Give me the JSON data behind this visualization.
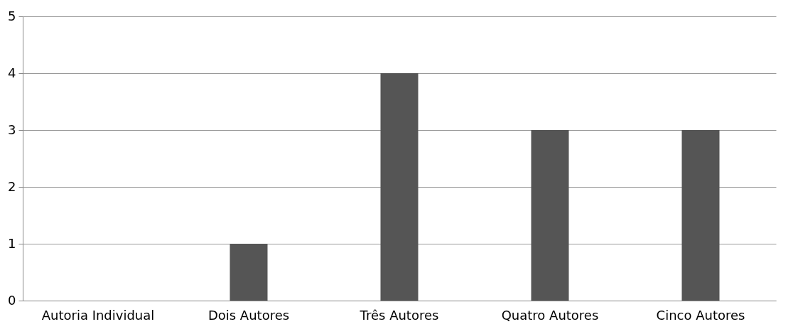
{
  "chart_data": {
    "type": "bar",
    "categories": [
      "Autoria Individual",
      "Dois Autores",
      "Três Autores",
      "Quatro Autores",
      "Cinco Autores"
    ],
    "values": [
      0,
      1,
      4,
      3,
      3
    ],
    "color": "#555555",
    "ylim": [
      0,
      5
    ],
    "yticks": [
      0,
      1,
      2,
      3,
      4,
      5
    ],
    "grid": "y"
  }
}
